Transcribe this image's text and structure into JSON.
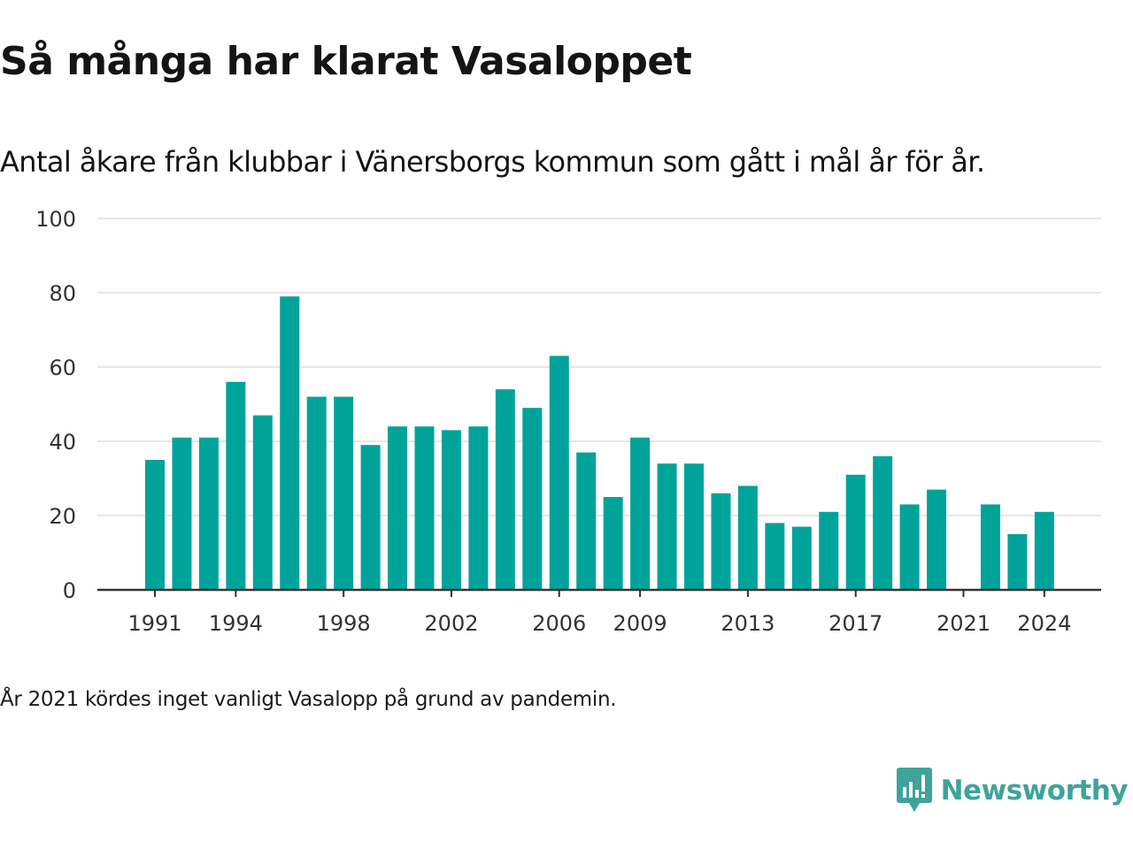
{
  "title": "Så många har klarat Vasaloppet",
  "subtitle": "Antal åkare från klubbar i Vänersborgs kommun som gått i mål år för år.",
  "note": "År 2021 kördes inget vanligt Vasalopp på grund av pandemin.",
  "brand": {
    "name": "Newsworthy",
    "icon": "newsworthy-logo-icon",
    "color": "#3ea39b"
  },
  "chart_data": {
    "type": "bar",
    "x": [
      1991,
      1992,
      1993,
      1994,
      1995,
      1996,
      1997,
      1998,
      1999,
      2000,
      2001,
      2002,
      2003,
      2004,
      2005,
      2006,
      2007,
      2008,
      2009,
      2010,
      2011,
      2012,
      2013,
      2014,
      2015,
      2016,
      2017,
      2018,
      2019,
      2020,
      2021,
      2022,
      2023,
      2024
    ],
    "values": [
      35,
      41,
      41,
      56,
      47,
      79,
      52,
      52,
      39,
      44,
      44,
      43,
      44,
      54,
      49,
      63,
      37,
      25,
      41,
      34,
      34,
      26,
      28,
      18,
      17,
      21,
      31,
      36,
      23,
      27,
      0,
      23,
      15,
      21
    ],
    "xticks": [
      "1991",
      "1994",
      "1998",
      "2002",
      "2006",
      "2009",
      "2013",
      "2017",
      "2021",
      "2024"
    ],
    "yticks": [
      "0",
      "20",
      "40",
      "60",
      "80",
      "100"
    ],
    "ylim": [
      0,
      100
    ],
    "grid": true,
    "bar_color": "#00a39a",
    "xlabel": "",
    "ylabel": ""
  }
}
